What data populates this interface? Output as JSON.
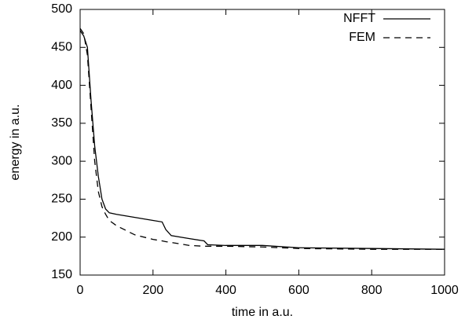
{
  "chart_data": {
    "type": "line",
    "xlabel": "time in a.u.",
    "ylabel": "energy in a.u.",
    "x": [
      0,
      10,
      20,
      30,
      40,
      50,
      60,
      70,
      80,
      100,
      150,
      200,
      225,
      235,
      250,
      300,
      340,
      350,
      400,
      500,
      600,
      800,
      1000
    ],
    "series": [
      {
        "name": "NFFT",
        "color": "#000000",
        "dash": "solid",
        "values": [
          472,
          465,
          450,
          380,
          320,
          280,
          250,
          237,
          232,
          230,
          226,
          222,
          220,
          210,
          202,
          198,
          195,
          190,
          189,
          189,
          186,
          185,
          184
        ]
      },
      {
        "name": "FEM",
        "color": "#000000",
        "dash": "dashed",
        "values": [
          475,
          468,
          440,
          370,
          300,
          260,
          240,
          230,
          222,
          215,
          203,
          197,
          195,
          194,
          193,
          189,
          188,
          188,
          188,
          187,
          185,
          184,
          184
        ]
      }
    ],
    "xlim": [
      0,
      1000
    ],
    "xticks": [
      0,
      200,
      400,
      600,
      800,
      1000
    ],
    "ylim": [
      150,
      500
    ],
    "yticks": [
      150,
      200,
      250,
      300,
      350,
      400,
      450,
      500
    ],
    "legend": "upper right",
    "grid": false
  }
}
